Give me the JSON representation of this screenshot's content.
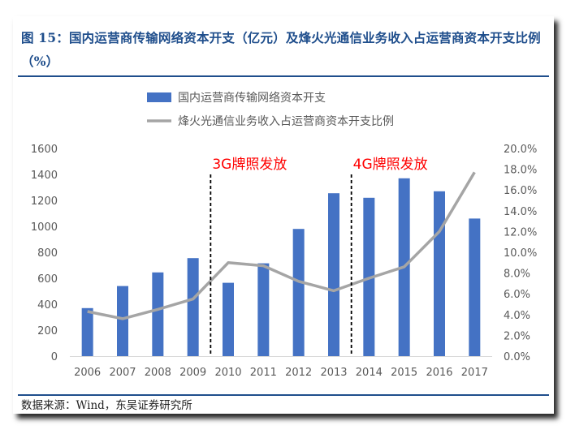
{
  "figure": {
    "title": "图 15：国内运营商传输网络资本开支（亿元）及烽火光通信业务收入占运营商资本开支比例（%）",
    "source": "数据来源：Wind，东吴证券研究所"
  },
  "chart_data": {
    "type": "bar",
    "categories": [
      "2006",
      "2007",
      "2008",
      "2009",
      "2010",
      "2011",
      "2012",
      "2013",
      "2014",
      "2015",
      "2016",
      "2017"
    ],
    "series": [
      {
        "name": "国内运营商传输网络资本开支",
        "type": "bar",
        "axis": "left",
        "color": "#4472c4",
        "values": [
          370,
          540,
          645,
          755,
          565,
          715,
          980,
          1255,
          1220,
          1370,
          1270,
          1060
        ]
      },
      {
        "name": "烽火光通信业务收入占运营商资本开支比例",
        "type": "line",
        "axis": "right",
        "color": "#a5a5a5",
        "values": [
          4.3,
          3.6,
          4.5,
          5.5,
          9.0,
          8.7,
          7.2,
          6.3,
          7.5,
          8.6,
          12.0,
          17.7
        ]
      }
    ],
    "y_left": {
      "min": 0,
      "max": 1600,
      "ticks": [
        0,
        200,
        400,
        600,
        800,
        1000,
        1200,
        1400,
        1600
      ]
    },
    "y_right": {
      "min": 0,
      "max": 20,
      "ticks": [
        "0.0%",
        "2.0%",
        "4.0%",
        "6.0%",
        "8.0%",
        "10.0%",
        "12.0%",
        "14.0%",
        "16.0%",
        "18.0%",
        "20.0%"
      ]
    },
    "grid": false,
    "legend_position": "top-left",
    "annotations": [
      {
        "text": "3G牌照发放",
        "at_boundary": [
          "2009",
          "2010"
        ],
        "color": "#ff0000"
      },
      {
        "text": "4G牌照发放",
        "at_boundary": [
          "2013",
          "2014"
        ],
        "color": "#ff0000"
      }
    ]
  }
}
